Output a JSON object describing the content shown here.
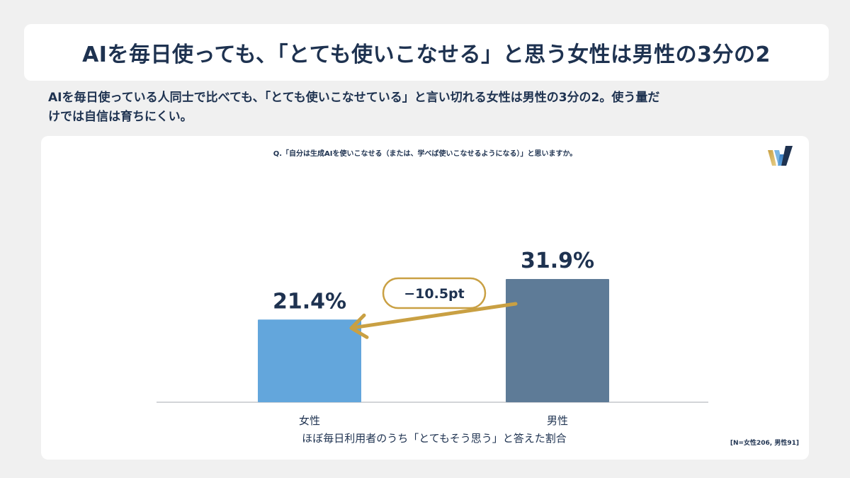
{
  "header": {
    "title": "AIを毎日使っても、「とても使いこなせる」と思う女性は男性の3分の2"
  },
  "subtitle": {
    "line1": "AIを毎日使っている人同士で比べても、「とても使いこなせている」と言い切れる女性は男性の3分の2。使う量だ",
    "line2": "けでは自信は育ちにくい。"
  },
  "logo": {
    "icon": "w-logo-icon"
  },
  "chart_data": {
    "type": "bar",
    "title": "Q.「自分は生成AIを使いこなせる（または、学べば使いこなせるようになる）」と思いますか。",
    "categories": [
      "女性",
      "男性"
    ],
    "values": [
      21.4,
      31.9
    ],
    "value_labels": [
      "21.4%",
      "31.9%"
    ],
    "colors": [
      "#63a6dc",
      "#5e7b97"
    ],
    "xlabel": "ほぼ毎日利用者のうち「とてもそう思う」と答えた割合",
    "ylabel": "",
    "ylim": [
      0,
      38
    ],
    "grid": false,
    "annotation": {
      "text": "−10.5pt",
      "color": "#c9a043"
    },
    "note": "[N=女性206, 男性91]"
  }
}
